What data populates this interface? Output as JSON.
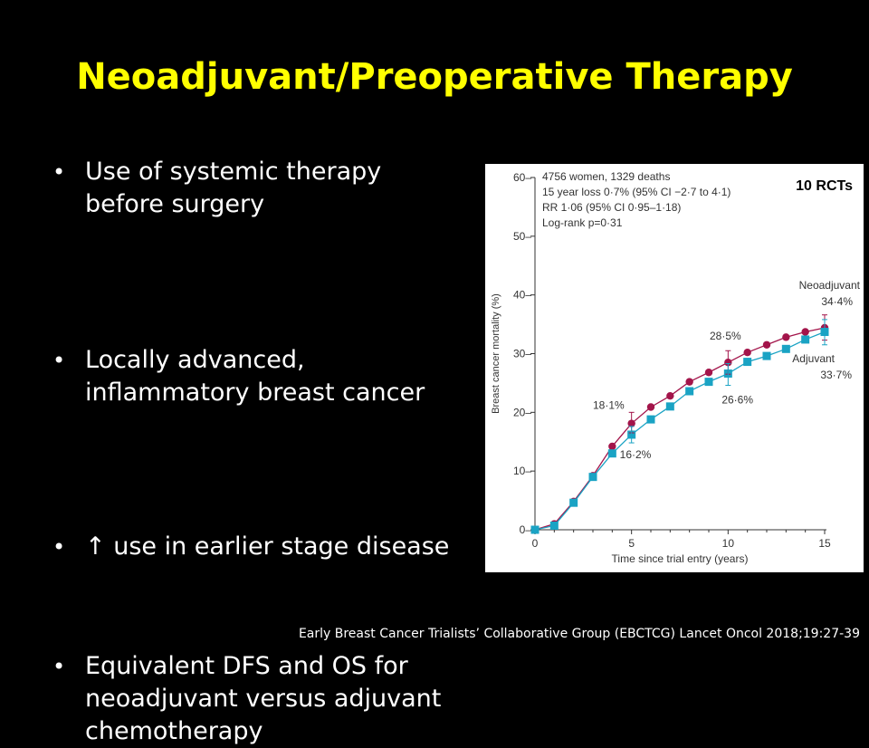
{
  "slide": {
    "title": "Neoadjuvant/Preoperative Therapy",
    "bullet_marker": "•",
    "bullets": [
      [
        "Use of systemic therapy",
        "before surgery"
      ],
      [
        "Locally advanced,",
        "inflammatory breast cancer"
      ],
      [
        "↑ use in earlier stage disease"
      ],
      [
        "Equivalent DFS and OS for",
        "neoadjuvant versus adjuvant",
        "chemotherapy"
      ]
    ],
    "citation": "Early Breast Cancer Trialists’ Collaborative Group (EBCTCG)  Lancet Oncol  2018;19:27-39"
  },
  "chart_data": {
    "type": "line",
    "badge": "10 RCTs",
    "xlabel": "Time since trial entry (years)",
    "ylabel": "Breast cancer mortality (%)",
    "xlim": [
      0,
      15
    ],
    "ylim": [
      0,
      60
    ],
    "xticks": [
      0,
      5,
      10,
      15
    ],
    "yticks": [
      0,
      10,
      20,
      30,
      40,
      50,
      60
    ],
    "stats": [
      "4756 women, 1329 deaths",
      "15 year loss 0·7% (95% CI −2·7 to 4·1)",
      "RR 1·06 (95% CI 0·95–1·18)",
      "Log-rank p=0·31"
    ],
    "x": [
      0,
      1,
      2,
      3,
      4,
      5,
      6,
      7,
      8,
      9,
      10,
      11,
      12,
      13,
      14,
      15
    ],
    "series": [
      {
        "name": "Neoadjuvant",
        "color": "#a3144a",
        "marker": "circle",
        "values": [
          0,
          1.0,
          4.8,
          9.2,
          14.2,
          18.1,
          20.9,
          22.8,
          25.2,
          26.8,
          28.5,
          30.2,
          31.5,
          32.8,
          33.7,
          34.4
        ],
        "end_label": "34·4%"
      },
      {
        "name": "Adjuvant",
        "color": "#1aa3c4",
        "marker": "square",
        "values": [
          0,
          0.7,
          4.6,
          9.0,
          13.0,
          16.2,
          18.8,
          21.0,
          23.6,
          25.2,
          26.6,
          28.6,
          29.6,
          30.8,
          32.4,
          33.7
        ],
        "end_label": "33·7%"
      }
    ],
    "annotations": [
      {
        "text": "18·1%",
        "x": 5,
        "y": 18.1,
        "series": "Neoadjuvant"
      },
      {
        "text": "16·2%",
        "x": 5,
        "y": 16.2,
        "series": "Adjuvant"
      },
      {
        "text": "28·5%",
        "x": 10,
        "y": 28.5,
        "series": "Neoadjuvant"
      },
      {
        "text": "26·6%",
        "x": 10,
        "y": 26.6,
        "series": "Adjuvant"
      }
    ]
  }
}
